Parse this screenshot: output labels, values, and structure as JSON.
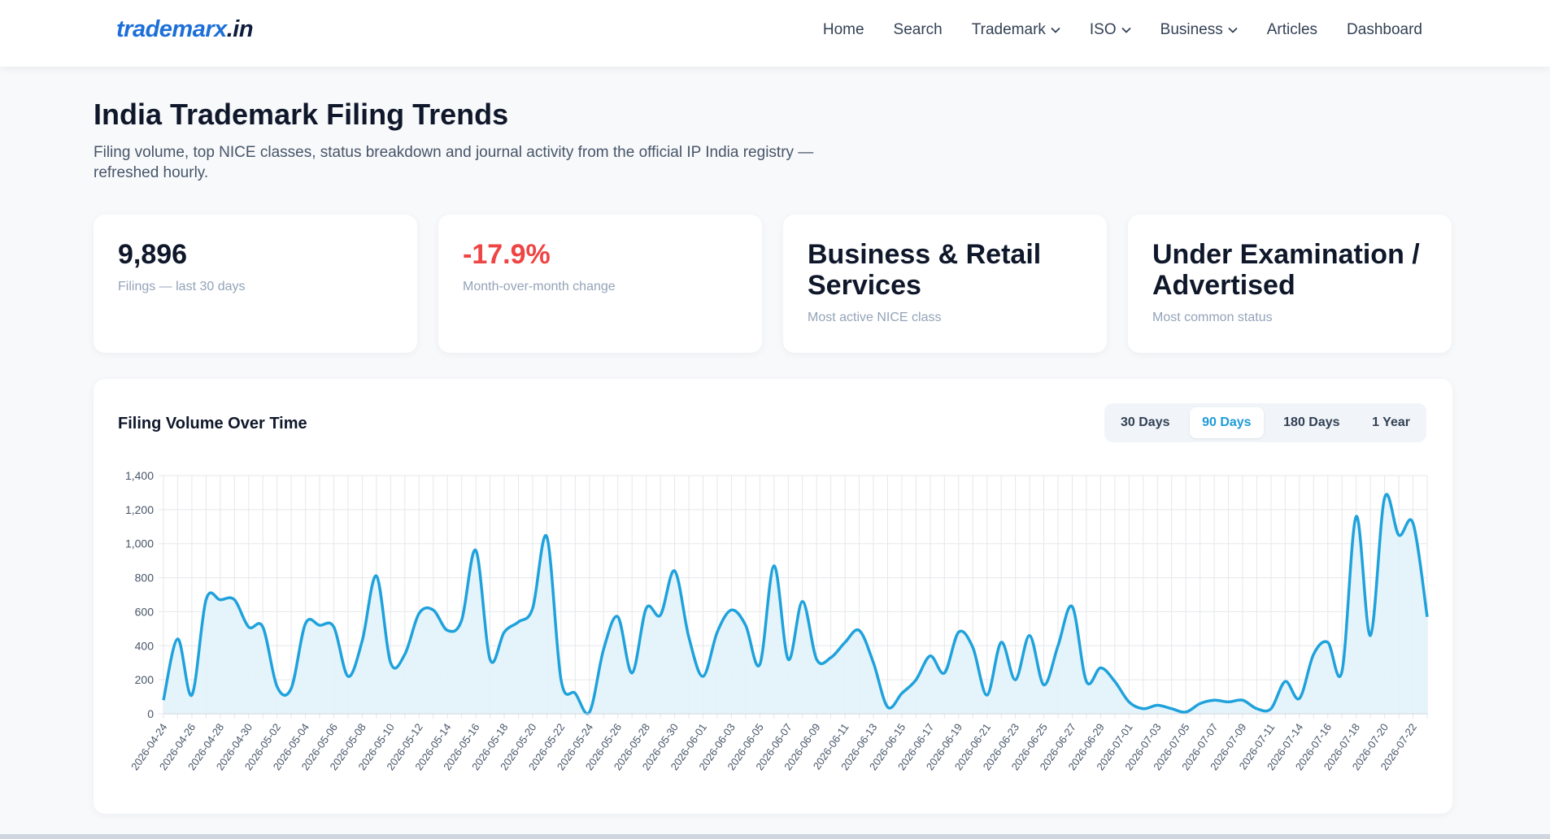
{
  "brand": {
    "part1": "trademarx",
    "part2": ".in"
  },
  "nav": [
    {
      "label": "Home",
      "dropdown": false
    },
    {
      "label": "Search",
      "dropdown": false
    },
    {
      "label": "Trademark",
      "dropdown": true
    },
    {
      "label": "ISO",
      "dropdown": true
    },
    {
      "label": "Business",
      "dropdown": true
    },
    {
      "label": "Articles",
      "dropdown": false
    },
    {
      "label": "Dashboard",
      "dropdown": false
    }
  ],
  "page": {
    "title": "India Trademark Filing Trends",
    "subtitle": "Filing volume, top NICE classes, status breakdown and journal activity from the official IP India registry — refreshed hourly."
  },
  "stats": [
    {
      "value": "9,896",
      "label": "Filings — last 30 days"
    },
    {
      "value": "-17.9%",
      "label": "Month-over-month change"
    },
    {
      "value": "Business & Retail Services",
      "label": "Most active NICE class"
    },
    {
      "value": "Under Examination / Advertised",
      "label": "Most common status"
    }
  ],
  "chart": {
    "title": "Filing Volume Over Time",
    "ranges": [
      "30 Days",
      "90 Days",
      "180 Days",
      "1 Year"
    ],
    "active_range": "90 Days"
  },
  "colors": {
    "line": "#1fa2dc",
    "fill": "#e2f3fb",
    "negative": "#ef4444",
    "brand": "#1d6fd8",
    "active_tab": "#1d9bd8"
  },
  "chart_data": {
    "type": "area",
    "title": "Filing Volume Over Time",
    "xlabel": "",
    "ylabel": "",
    "ylim": [
      0,
      1400
    ],
    "yticks": [
      0,
      200,
      400,
      600,
      800,
      1000,
      1200,
      1400
    ],
    "grid": true,
    "x": [
      "2026-04-24",
      "2026-04-25",
      "2026-04-26",
      "2026-04-27",
      "2026-04-28",
      "2026-04-29",
      "2026-04-30",
      "2026-05-01",
      "2026-05-02",
      "2026-05-03",
      "2026-05-04",
      "2026-05-05",
      "2026-05-06",
      "2026-05-07",
      "2026-05-08",
      "2026-05-09",
      "2026-05-10",
      "2026-05-11",
      "2026-05-12",
      "2026-05-13",
      "2026-05-14",
      "2026-05-15",
      "2026-05-16",
      "2026-05-17",
      "2026-05-18",
      "2026-05-19",
      "2026-05-20",
      "2026-05-21",
      "2026-05-22",
      "2026-05-23",
      "2026-05-24",
      "2026-05-25",
      "2026-05-26",
      "2026-05-27",
      "2026-05-28",
      "2026-05-29",
      "2026-05-30",
      "2026-05-31",
      "2026-06-01",
      "2026-06-02",
      "2026-06-03",
      "2026-06-04",
      "2026-06-05",
      "2026-06-06",
      "2026-06-07",
      "2026-06-08",
      "2026-06-09",
      "2026-06-10",
      "2026-06-11",
      "2026-06-12",
      "2026-06-13",
      "2026-06-14",
      "2026-06-15",
      "2026-06-16",
      "2026-06-17",
      "2026-06-18",
      "2026-06-19",
      "2026-06-20",
      "2026-06-21",
      "2026-06-22",
      "2026-06-23",
      "2026-06-24",
      "2026-06-25",
      "2026-06-26",
      "2026-06-27",
      "2026-06-28",
      "2026-06-29",
      "2026-06-30",
      "2026-07-01",
      "2026-07-02",
      "2026-07-03",
      "2026-07-04",
      "2026-07-05",
      "2026-07-06",
      "2026-07-07",
      "2026-07-08",
      "2026-07-09",
      "2026-07-10",
      "2026-07-11",
      "2026-07-13",
      "2026-07-14",
      "2026-07-15",
      "2026-07-16",
      "2026-07-17",
      "2026-07-18",
      "2026-07-19",
      "2026-07-20",
      "2026-07-21",
      "2026-07-22",
      "2026-07-23"
    ],
    "series": [
      {
        "values": [
          80,
          440,
          110,
          670,
          670,
          670,
          510,
          510,
          160,
          150,
          530,
          520,
          510,
          220,
          430,
          810,
          300,
          350,
          590,
          610,
          490,
          550,
          960,
          320,
          480,
          540,
          620,
          1040,
          200,
          120,
          10,
          380,
          570,
          240,
          620,
          580,
          840,
          450,
          220,
          480,
          610,
          520,
          290,
          870,
          320,
          660,
          320,
          330,
          420,
          490,
          300,
          40,
          120,
          200,
          340,
          240,
          480,
          390,
          110,
          420,
          200,
          460,
          170,
          400,
          630,
          190,
          270,
          190,
          70,
          30,
          50,
          30,
          10,
          60,
          80,
          70,
          80,
          30,
          30,
          190,
          90,
          350,
          420,
          250,
          1160,
          460,
          1270,
          1050,
          1120,
          570
        ]
      }
    ]
  }
}
